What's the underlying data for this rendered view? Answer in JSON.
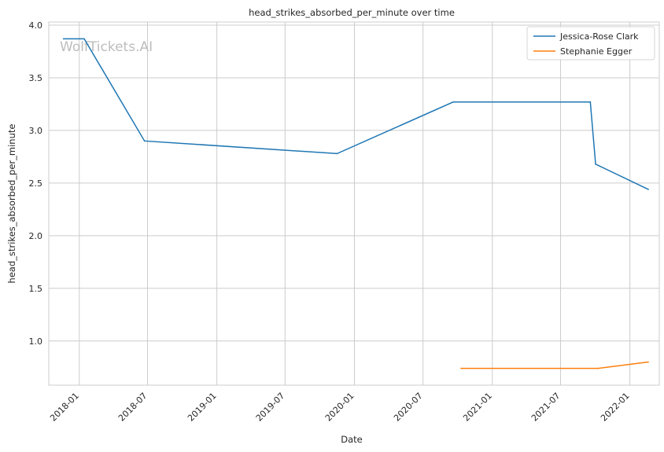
{
  "chart_data": {
    "type": "line",
    "title": "head_strikes_absorbed_per_minute over time",
    "xlabel": "Date",
    "ylabel": "head_strikes_absorbed_per_minute",
    "watermark": "WolfTickets.AI",
    "x_ticks": [
      "2018-01",
      "2018-07",
      "2019-01",
      "2019-07",
      "2020-01",
      "2020-07",
      "2021-01",
      "2021-07",
      "2022-01"
    ],
    "xlim": [
      "2017-10-12",
      "2022-03-20"
    ],
    "ylim": [
      0.58,
      4.03
    ],
    "y_ticks": [
      1.0,
      1.5,
      2.0,
      2.5,
      3.0,
      3.5,
      4.0
    ],
    "y_tick_labels": [
      "1.0",
      "1.5",
      "2.0",
      "2.5",
      "3.0",
      "3.5",
      "4.0"
    ],
    "grid": true,
    "legend_position": "top-right",
    "series": [
      {
        "name": "Jessica-Rose Clark",
        "color": "#1f77b4",
        "points": [
          {
            "x": "2017-11-20",
            "y": 3.87
          },
          {
            "x": "2018-01-14",
            "y": 3.87
          },
          {
            "x": "2018-06-23",
            "y": 2.9
          },
          {
            "x": "2019-11-16",
            "y": 2.78
          },
          {
            "x": "2020-09-19",
            "y": 3.27
          },
          {
            "x": "2021-09-18",
            "y": 3.27
          },
          {
            "x": "2021-10-02",
            "y": 2.68
          },
          {
            "x": "2022-02-19",
            "y": 2.44
          }
        ]
      },
      {
        "name": "Stephanie Egger",
        "color": "#ff7f0e",
        "points": [
          {
            "x": "2020-10-10",
            "y": 0.74
          },
          {
            "x": "2021-10-09",
            "y": 0.74
          },
          {
            "x": "2022-02-19",
            "y": 0.8
          }
        ]
      }
    ]
  }
}
